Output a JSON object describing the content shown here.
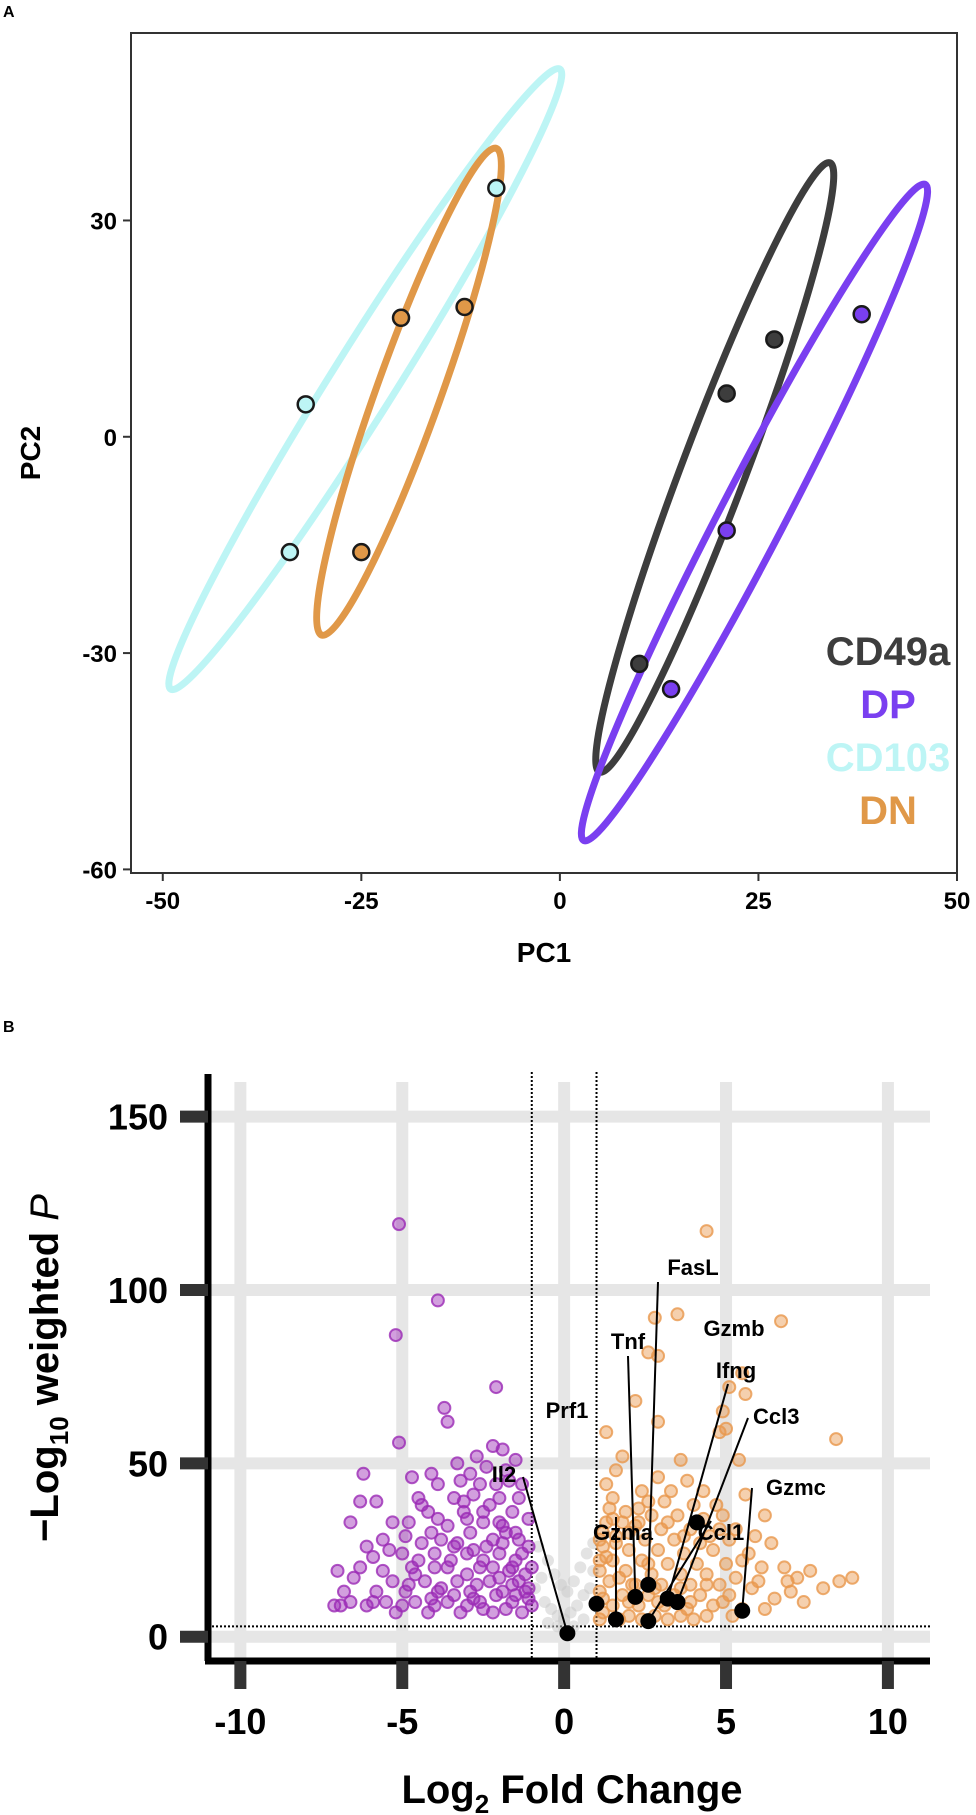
{
  "panels": {
    "a_letter": "A",
    "b_letter": "B"
  },
  "chart_data": [
    {
      "type": "scatter",
      "title": "",
      "xlabel": "PC1",
      "ylabel": "PC2",
      "xlim": [
        -54,
        50
      ],
      "ylim": [
        -60.5,
        56
      ],
      "xticks": [
        -50,
        -25,
        0,
        25,
        50
      ],
      "yticks": [
        -60,
        -30,
        0,
        30
      ],
      "xtick_labels": [
        "-50",
        "-25",
        "0",
        "25",
        "50"
      ],
      "ytick_labels": [
        "-60",
        "-30",
        "0",
        "30"
      ],
      "grid": false,
      "legend_position": "bottom-right",
      "series": [
        {
          "name": "CD49a",
          "color": "#3d3d3d",
          "points": [
            [
              21,
              6
            ],
            [
              27,
              13.5
            ],
            [
              10,
              -31.5
            ]
          ],
          "ellipse": [
            [
              5,
              -46.5
            ],
            [
              34,
              38
            ]
          ]
        },
        {
          "name": "DP",
          "color": "#7a3ff0",
          "points": [
            [
              38,
              17
            ],
            [
              21,
              -13
            ],
            [
              14,
              -35
            ]
          ],
          "ellipse": [
            [
              3,
              -56
            ],
            [
              46,
              35
            ]
          ]
        },
        {
          "name": "CD103",
          "color": "#bdf5f5",
          "points": [
            [
              -8,
              34.5
            ],
            [
              -32,
              4.5
            ],
            [
              -34,
              -16
            ]
          ],
          "ellipse": [
            [
              -49,
              -35
            ],
            [
              0,
              51
            ]
          ]
        },
        {
          "name": "DN",
          "color": "#e09848",
          "points": [
            [
              -20,
              16.5
            ],
            [
              -12,
              18
            ],
            [
              -25,
              -16
            ]
          ],
          "ellipse": [
            [
              -30,
              -27.5
            ],
            [
              -8,
              40
            ]
          ]
        }
      ]
    },
    {
      "type": "scatter",
      "title": "",
      "xlabel": "Log",
      "xlabel_sub": "2",
      "xlabel_rest": " Fold Change",
      "ylabel_prefix": "−Log",
      "ylabel_sub": "10",
      "ylabel_mid": " weighted ",
      "ylabel_italic": "P",
      "xlim": [
        -11,
        11.3
      ],
      "ylim": [
        -7,
        160
      ],
      "xticks": [
        -10,
        -5,
        0,
        5,
        10
      ],
      "yticks": [
        0,
        50,
        100,
        150
      ],
      "xtick_labels": [
        "-10",
        "-5",
        "0",
        "5",
        "10"
      ],
      "ytick_labels": [
        "0",
        "50",
        "100",
        "150"
      ],
      "grid": true,
      "fold_change_cutoffs": [
        -1,
        1
      ],
      "p_cutoff": 3,
      "colors": {
        "down": "#9b2bb5",
        "up": "#e8974c",
        "ns": "#c8c8c8",
        "labeled": "#000000",
        "grid": "#e6e6e6"
      },
      "down_points": [
        [
          -5.1,
          119
        ],
        [
          -3.9,
          97
        ],
        [
          -5.2,
          87
        ],
        [
          -2.1,
          72
        ],
        [
          -3.7,
          66
        ],
        [
          -3.6,
          62
        ],
        [
          -5.1,
          56
        ],
        [
          -2.2,
          55
        ],
        [
          -1.9,
          54
        ],
        [
          -2.7,
          52
        ],
        [
          -3.3,
          50
        ],
        [
          -2.4,
          49
        ],
        [
          -1.5,
          51
        ],
        [
          -4.1,
          47
        ],
        [
          -6.2,
          47
        ],
        [
          -4.7,
          46
        ],
        [
          -2.9,
          47
        ],
        [
          -3.9,
          44
        ],
        [
          -2.1,
          44
        ],
        [
          -1.7,
          45
        ],
        [
          -5.8,
          39
        ],
        [
          -6.3,
          39
        ],
        [
          -4.5,
          40
        ],
        [
          -3.4,
          40
        ],
        [
          -2.8,
          41
        ],
        [
          -2.3,
          38
        ],
        [
          -4.2,
          36
        ],
        [
          -3.1,
          36
        ],
        [
          -1.6,
          36
        ],
        [
          -5.3,
          33
        ],
        [
          -4.8,
          33
        ],
        [
          -3.6,
          32
        ],
        [
          -2.5,
          33
        ],
        [
          -4.1,
          30
        ],
        [
          -2.9,
          30
        ],
        [
          -1.9,
          32
        ],
        [
          -5.6,
          28
        ],
        [
          -4.4,
          27
        ],
        [
          -3.3,
          27
        ],
        [
          -2.2,
          28
        ],
        [
          -1.4,
          28
        ],
        [
          -5.9,
          23
        ],
        [
          -5.0,
          24
        ],
        [
          -4.0,
          24
        ],
        [
          -3.0,
          24
        ],
        [
          -2.0,
          24
        ],
        [
          -6.3,
          20
        ],
        [
          -6.5,
          17
        ],
        [
          -4.7,
          20
        ],
        [
          -3.6,
          20
        ],
        [
          -2.6,
          20
        ],
        [
          -1.6,
          20
        ],
        [
          -5.3,
          16
        ],
        [
          -4.3,
          16
        ],
        [
          -3.3,
          16
        ],
        [
          -2.3,
          16
        ],
        [
          -1.4,
          16
        ],
        [
          -6.8,
          13
        ],
        [
          -5.8,
          13
        ],
        [
          -4.9,
          13
        ],
        [
          -3.9,
          13
        ],
        [
          -2.9,
          13
        ],
        [
          -1.9,
          13
        ],
        [
          -1.2,
          13
        ],
        [
          -7.0,
          19
        ],
        [
          -6.6,
          10
        ],
        [
          -5.5,
          10
        ],
        [
          -4.6,
          10
        ],
        [
          -3.6,
          10
        ],
        [
          -2.6,
          10
        ],
        [
          -1.6,
          10
        ],
        [
          -6.1,
          9
        ],
        [
          -5.2,
          7
        ],
        [
          -4.2,
          7
        ],
        [
          -3.2,
          7
        ],
        [
          -2.2,
          7
        ],
        [
          -1.3,
          7
        ],
        [
          -3.8,
          14
        ],
        [
          -2.7,
          15
        ],
        [
          -2.0,
          17
        ],
        [
          -1.7,
          19
        ],
        [
          -1.5,
          22
        ],
        [
          -2.5,
          22
        ],
        [
          -3.5,
          22
        ],
        [
          -4.5,
          22
        ],
        [
          -3.0,
          18
        ],
        [
          -1.3,
          24
        ],
        [
          -2.4,
          26
        ],
        [
          -1.8,
          30
        ],
        [
          -3.8,
          28
        ],
        [
          -4.9,
          29
        ],
        [
          -1.2,
          18
        ],
        [
          -1.1,
          14
        ],
        [
          -1.5,
          12
        ],
        [
          -2.1,
          12
        ],
        [
          -2.8,
          11
        ],
        [
          -3.4,
          12
        ],
        [
          -4.1,
          11
        ],
        [
          -4.8,
          15
        ],
        [
          -5.6,
          19
        ],
        [
          -5.4,
          25
        ],
        [
          -6.6,
          33
        ],
        [
          -6.1,
          26
        ],
        [
          -3.0,
          34
        ],
        [
          -2.0,
          40
        ],
        [
          -2.6,
          44
        ],
        [
          -3.2,
          45
        ],
        [
          -1.8,
          48
        ],
        [
          -1.3,
          44
        ],
        [
          -1.4,
          40
        ],
        [
          -1.1,
          34
        ],
        [
          -1.9,
          27
        ],
        [
          -1.1,
          26
        ],
        [
          -1.0,
          20
        ],
        [
          -1.0,
          9
        ],
        [
          -1.8,
          8
        ],
        [
          -2.5,
          8
        ],
        [
          -3.0,
          9
        ],
        [
          -4.0,
          9
        ],
        [
          -5.0,
          9
        ],
        [
          -7.1,
          9
        ],
        [
          -6.9,
          9
        ],
        [
          -5.9,
          10
        ],
        [
          -1.1,
          11
        ],
        [
          -1.6,
          15
        ],
        [
          -2.2,
          20
        ],
        [
          -2.8,
          25
        ],
        [
          -3.4,
          26
        ],
        [
          -4.0,
          20
        ],
        [
          -4.6,
          18
        ],
        [
          -3.9,
          34
        ],
        [
          -4.4,
          38
        ],
        [
          -3.1,
          39
        ],
        [
          -2.5,
          36
        ],
        [
          -2.0,
          33
        ],
        [
          -1.5,
          30
        ]
      ],
      "up_points": [
        [
          4.4,
          117
        ],
        [
          3.5,
          93
        ],
        [
          2.8,
          92
        ],
        [
          6.7,
          91
        ],
        [
          2.6,
          82
        ],
        [
          2.9,
          81
        ],
        [
          5.5,
          76
        ],
        [
          5.1,
          72
        ],
        [
          5.6,
          70
        ],
        [
          2.2,
          68
        ],
        [
          4.9,
          65
        ],
        [
          2.9,
          62
        ],
        [
          5.0,
          60
        ],
        [
          4.8,
          59
        ],
        [
          1.3,
          59
        ],
        [
          8.4,
          57
        ],
        [
          1.8,
          52
        ],
        [
          3.6,
          51
        ],
        [
          5.4,
          51
        ],
        [
          1.6,
          48
        ],
        [
          2.9,
          46
        ],
        [
          3.8,
          45
        ],
        [
          1.3,
          44
        ],
        [
          2.4,
          42
        ],
        [
          4.3,
          42
        ],
        [
          5.6,
          41
        ],
        [
          1.5,
          40
        ],
        [
          3.1,
          39
        ],
        [
          4.7,
          38
        ],
        [
          6.2,
          35
        ],
        [
          1.9,
          36
        ],
        [
          2.7,
          35
        ],
        [
          3.5,
          35
        ],
        [
          4.3,
          34
        ],
        [
          1.3,
          33
        ],
        [
          2.2,
          32
        ],
        [
          3.0,
          31
        ],
        [
          3.9,
          31
        ],
        [
          4.8,
          31
        ],
        [
          1.6,
          29
        ],
        [
          2.5,
          28
        ],
        [
          3.4,
          28
        ],
        [
          4.2,
          27
        ],
        [
          5.1,
          28
        ],
        [
          1.2,
          26
        ],
        [
          2.0,
          25
        ],
        [
          2.9,
          25
        ],
        [
          3.7,
          24
        ],
        [
          4.6,
          25
        ],
        [
          5.7,
          24
        ],
        [
          1.5,
          22
        ],
        [
          2.4,
          22
        ],
        [
          3.2,
          21
        ],
        [
          4.1,
          21
        ],
        [
          5.0,
          21
        ],
        [
          6.1,
          20
        ],
        [
          6.8,
          20
        ],
        [
          7.6,
          19
        ],
        [
          1.1,
          19
        ],
        [
          1.9,
          19
        ],
        [
          2.7,
          18
        ],
        [
          3.6,
          18
        ],
        [
          4.4,
          18
        ],
        [
          5.3,
          17
        ],
        [
          8.5,
          16
        ],
        [
          8.9,
          17
        ],
        [
          1.4,
          16
        ],
        [
          2.2,
          15
        ],
        [
          3.0,
          15
        ],
        [
          3.9,
          15
        ],
        [
          4.8,
          15
        ],
        [
          5.8,
          14
        ],
        [
          7.0,
          13
        ],
        [
          1.1,
          13
        ],
        [
          1.8,
          12
        ],
        [
          2.6,
          12
        ],
        [
          3.4,
          12
        ],
        [
          4.2,
          12
        ],
        [
          5.1,
          12
        ],
        [
          6.5,
          11
        ],
        [
          7.4,
          10
        ],
        [
          1.5,
          9
        ],
        [
          2.3,
          9
        ],
        [
          3.1,
          9
        ],
        [
          3.8,
          8
        ],
        [
          4.6,
          9
        ],
        [
          5.5,
          8
        ],
        [
          6.2,
          8
        ],
        [
          1.2,
          7
        ],
        [
          2.0,
          6
        ],
        [
          2.8,
          6
        ],
        [
          3.6,
          6
        ],
        [
          4.4,
          6
        ],
        [
          5.2,
          6
        ],
        [
          1.1,
          5
        ],
        [
          1.7,
          5
        ],
        [
          2.4,
          5
        ],
        [
          3.2,
          5
        ],
        [
          4.0,
          5
        ],
        [
          1.3,
          23
        ],
        [
          1.6,
          27
        ],
        [
          2.0,
          30
        ],
        [
          1.2,
          30
        ],
        [
          1.8,
          33
        ],
        [
          2.3,
          37
        ],
        [
          1.4,
          37
        ],
        [
          2.6,
          39
        ],
        [
          3.3,
          42
        ],
        [
          4.0,
          38
        ],
        [
          4.9,
          35
        ],
        [
          5.3,
          31
        ],
        [
          5.9,
          29
        ],
        [
          6.4,
          27
        ],
        [
          3.7,
          29
        ],
        [
          2.6,
          21
        ],
        [
          1.7,
          17
        ],
        [
          1.2,
          11
        ],
        [
          2.0,
          10
        ],
        [
          2.9,
          10
        ],
        [
          3.9,
          10
        ],
        [
          4.9,
          10
        ],
        [
          6.0,
          16
        ],
        [
          6.9,
          16
        ],
        [
          5.5,
          22
        ],
        [
          4.5,
          29
        ],
        [
          3.2,
          33
        ],
        [
          2.3,
          33
        ],
        [
          1.5,
          34
        ],
        [
          1.1,
          28
        ],
        [
          1.1,
          22
        ],
        [
          2.1,
          15
        ],
        [
          2.8,
          14
        ],
        [
          3.6,
          14
        ],
        [
          4.4,
          15
        ],
        [
          7.2,
          17
        ],
        [
          8.0,
          14
        ]
      ],
      "ns_points": [
        [
          -0.8,
          26
        ],
        [
          -0.5,
          22
        ],
        [
          -0.3,
          18
        ],
        [
          -0.1,
          15
        ],
        [
          0.1,
          13
        ],
        [
          0.3,
          16
        ],
        [
          0.5,
          20
        ],
        [
          0.7,
          24
        ],
        [
          0.9,
          27
        ],
        [
          -0.6,
          10
        ],
        [
          -0.4,
          8
        ],
        [
          -0.2,
          6
        ],
        [
          0.0,
          5
        ],
        [
          0.2,
          7
        ],
        [
          0.4,
          9
        ],
        [
          0.6,
          12
        ],
        [
          0.8,
          14
        ],
        [
          -0.9,
          14
        ],
        [
          -0.7,
          17
        ],
        [
          0.9,
          19
        ],
        [
          0.6,
          5
        ],
        [
          -0.5,
          4
        ],
        [
          0.3,
          3
        ],
        [
          -0.2,
          3
        ]
      ],
      "labeled_points": [
        {
          "label": "FasL",
          "x": 2.6,
          "y": 15
        },
        {
          "label": "Gzmb",
          "x": 4.1,
          "y": 33
        },
        {
          "label": "Tnf",
          "x": 2.2,
          "y": 11.5
        },
        {
          "label": "Ifng",
          "x": 3.2,
          "y": 11
        },
        {
          "label": "Ccl3",
          "x": 3.5,
          "y": 10
        },
        {
          "label": "Prf1",
          "x": 1.0,
          "y": 9.5
        },
        {
          "label": "Il2",
          "x": 0.1,
          "y": 1
        },
        {
          "label": "Gzma",
          "x": 1.6,
          "y": 5
        },
        {
          "label": "Ccl1",
          "x": 2.6,
          "y": 4.5
        },
        {
          "label": "Gzmc",
          "x": 5.5,
          "y": 7.5
        }
      ]
    }
  ]
}
